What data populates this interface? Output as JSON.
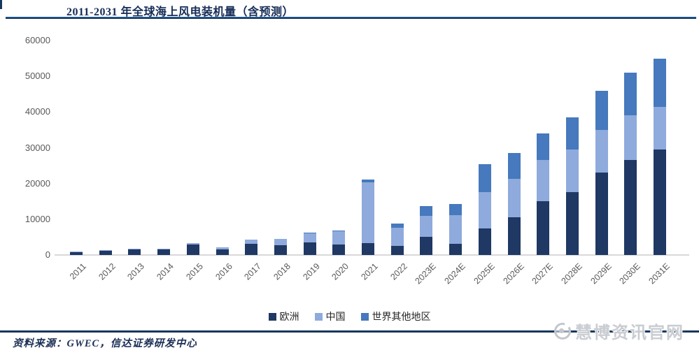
{
  "header": {
    "title": "2011-2031 年全球海上风电装机量（含预测）"
  },
  "chart_data": {
    "type": "bar",
    "stacked": true,
    "title": "2011-2031 年全球海上风电装机量（含预测）",
    "categories": [
      "2011",
      "2012",
      "2013",
      "2014",
      "2015",
      "2016",
      "2017",
      "2018",
      "2019",
      "2020",
      "2021",
      "2022",
      "2023E",
      "2024E",
      "2025E",
      "2026E",
      "2027E",
      "2028E",
      "2029E",
      "2030E",
      "2031E"
    ],
    "series": [
      {
        "name": "欧洲",
        "key": "europe",
        "color": "#1F3864",
        "values": [
          900,
          1200,
          1600,
          1500,
          3000,
          1600,
          3100,
          2700,
          3600,
          2900,
          3300,
          2500,
          5000,
          3100,
          7500,
          10500,
          15000,
          17500,
          23000,
          26500,
          29500
        ]
      },
      {
        "name": "中国",
        "key": "china",
        "color": "#8FAADC",
        "values": [
          100,
          100,
          200,
          200,
          400,
          600,
          1200,
          1800,
          2500,
          3800,
          17000,
          5100,
          6000,
          8000,
          10000,
          10800,
          11500,
          12000,
          12000,
          12500,
          12000
        ]
      },
      {
        "name": "世界其他地区",
        "key": "rest-of-world",
        "color": "#4679BD",
        "values": [
          0,
          0,
          0,
          0,
          0,
          0,
          0,
          0,
          200,
          200,
          800,
          1200,
          2600,
          3200,
          8000,
          7200,
          7500,
          9000,
          11000,
          12000,
          13500
        ]
      }
    ],
    "ylim": [
      0,
      60000
    ],
    "yticks": [
      0,
      10000,
      20000,
      30000,
      40000,
      50000,
      60000
    ],
    "xlabel": "",
    "ylabel": "",
    "grid": false,
    "legend_position": "bottom"
  },
  "legend": {
    "items": [
      "欧洲",
      "中国",
      "世界其他地区"
    ]
  },
  "footer": {
    "source_label": "资料来源：GWEC，信达证券研发中心"
  },
  "watermark": {
    "text": "慧博资讯官网"
  }
}
